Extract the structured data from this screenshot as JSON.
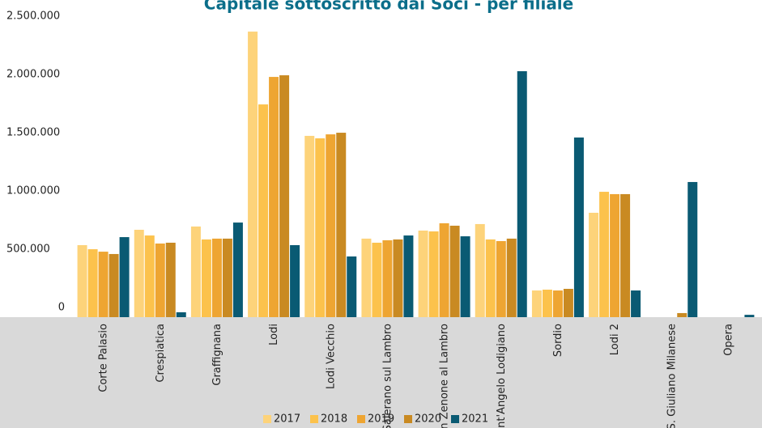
{
  "chart_data": {
    "type": "bar",
    "title": "Capitale sottoscritto dai Soci - per filiale",
    "categories": [
      "Corte Palasio",
      "Crespiatica",
      "Graffignana",
      "Lodi",
      "Lodi Vecchio",
      "Salerano sul Lambro",
      "San Zenone al Lambro",
      "Sant'Angelo Lodigiano",
      "Sordio",
      "Lodi 2",
      "S. Giuliano Milanese",
      "Opera"
    ],
    "series": [
      {
        "name": "2017",
        "color": "#fdd37a",
        "values": [
          618000,
          750000,
          778000,
          2451000,
          1556000,
          674000,
          743000,
          799000,
          229000,
          896000,
          null,
          null
        ]
      },
      {
        "name": "2018",
        "color": "#fcc24c",
        "values": [
          583000,
          701000,
          667000,
          1826000,
          1535000,
          639000,
          736000,
          667000,
          236000,
          1076000,
          null,
          null
        ]
      },
      {
        "name": "2019",
        "color": "#eea532",
        "values": [
          562000,
          632000,
          674000,
          2062000,
          1569000,
          660000,
          806000,
          653000,
          229000,
          1056000,
          null,
          null
        ]
      },
      {
        "name": "2020",
        "color": "#c98a22",
        "values": [
          542000,
          639000,
          674000,
          2076000,
          1583000,
          667000,
          785000,
          674000,
          243000,
          1056000,
          35000,
          null
        ]
      },
      {
        "name": "2021",
        "color": "#0a5a73",
        "values": [
          687000,
          42000,
          812000,
          618000,
          521000,
          701000,
          694000,
          2111000,
          1542000,
          229000,
          1160000,
          20000
        ]
      }
    ],
    "ylim": [
      0,
      2500000
    ],
    "yticks": [
      0,
      {
        "value": 500000,
        "label": "500.000"
      },
      {
        "value": 1000000,
        "label": "1.000.000"
      },
      {
        "value": 1500000,
        "label": "1.500.000"
      },
      {
        "value": 2000000,
        "label": "2.000.000"
      },
      {
        "value": 2500000,
        "label": "2.500.000"
      }
    ],
    "grid": false,
    "legend": "bottom"
  }
}
